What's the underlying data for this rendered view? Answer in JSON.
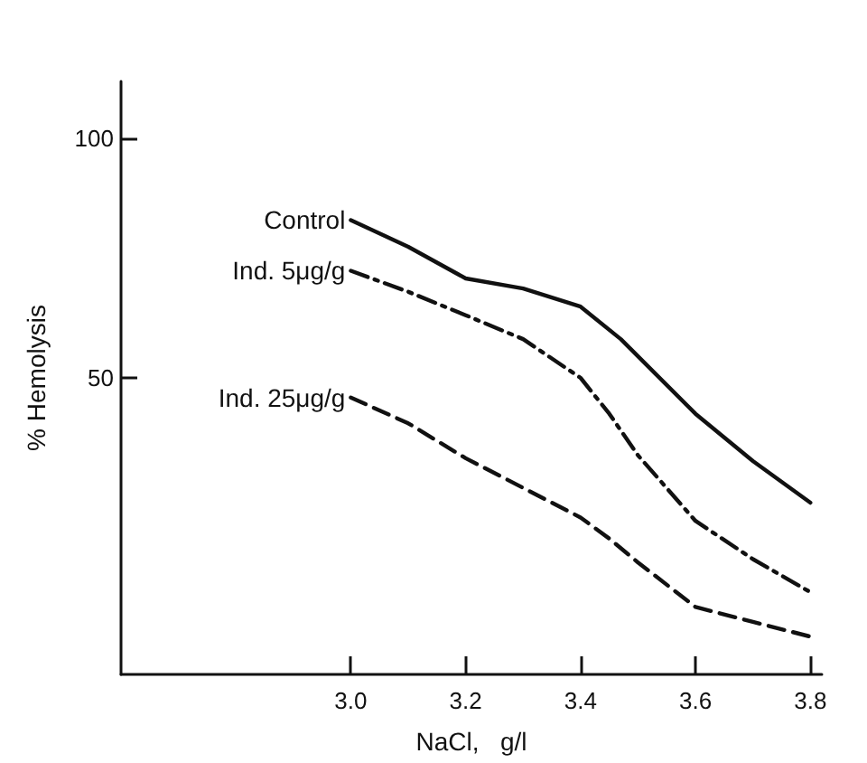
{
  "chart_data": {
    "type": "line",
    "xlabel": "NaCl,   g/l",
    "ylabel": "% Hemolysis",
    "xlim": [
      2.6,
      3.82
    ],
    "ylim": [
      -12,
      112
    ],
    "xticks": [
      {
        "value": 3.0,
        "label": "3.0"
      },
      {
        "value": 3.2,
        "label": "3.2"
      },
      {
        "value": 3.4,
        "label": "3.4"
      },
      {
        "value": 3.6,
        "label": "3.6"
      },
      {
        "value": 3.8,
        "label": "3.8"
      }
    ],
    "yticks": [
      50,
      100
    ],
    "grid": false,
    "legend": false,
    "marker": "none",
    "series": [
      {
        "name": "Control",
        "color": "#111111",
        "line_style": "solid",
        "x": [
          3.0,
          3.1,
          3.2,
          3.3,
          3.4,
          3.47,
          3.6,
          3.7,
          3.8
        ],
        "values": [
          83.0,
          77.4,
          70.8,
          68.7,
          64.9,
          58.1,
          42.5,
          32.6,
          23.9
        ]
      },
      {
        "name": "Ind. 5μg/g",
        "color": "#111111",
        "line_style": "dashdot",
        "x": [
          3.0,
          3.1,
          3.2,
          3.3,
          3.4,
          3.45,
          3.5,
          3.6,
          3.7,
          3.8
        ],
        "values": [
          72.4,
          68.0,
          63.1,
          58.1,
          50.0,
          42.5,
          33.8,
          20.1,
          12.1,
          5.2
        ]
      },
      {
        "name": "Ind. 25μg/g",
        "color": "#111111",
        "line_style": "dashed",
        "x": [
          3.0,
          3.1,
          3.2,
          3.3,
          3.4,
          3.45,
          3.5,
          3.6,
          3.7,
          3.8
        ],
        "values": [
          45.9,
          40.5,
          33.2,
          27.0,
          20.8,
          16.4,
          11.4,
          2.1,
          -1.0,
          -4.1
        ]
      }
    ]
  }
}
